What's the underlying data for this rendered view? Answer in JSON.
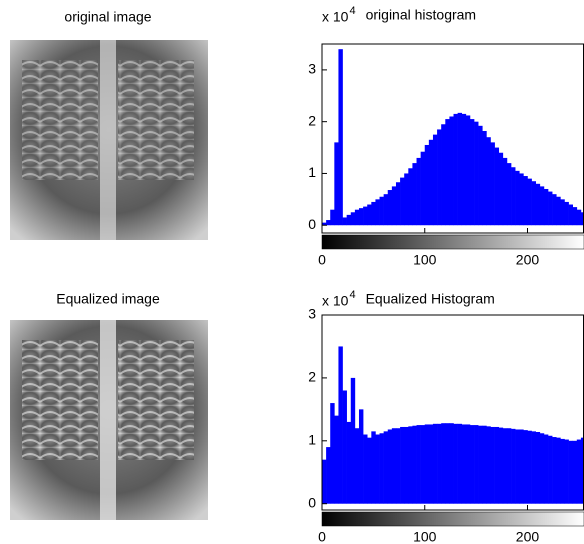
{
  "images": [
    {
      "title": "original image"
    },
    {
      "title": "Equalized image"
    }
  ],
  "chart_data": [
    {
      "type": "histogram",
      "title": "original histogram",
      "scale_base": "x 10",
      "scale_exponent": "4",
      "color": "#0000ff",
      "bins": [
        0,
        4,
        8,
        12,
        16,
        20,
        24,
        28,
        32,
        36,
        40,
        44,
        48,
        52,
        56,
        60,
        64,
        68,
        72,
        76,
        80,
        84,
        88,
        92,
        96,
        100,
        104,
        108,
        112,
        116,
        120,
        124,
        128,
        132,
        136,
        140,
        144,
        148,
        152,
        156,
        160,
        164,
        168,
        172,
        176,
        180,
        184,
        188,
        192,
        196,
        200,
        204,
        208,
        212,
        216,
        220,
        224,
        228,
        232,
        236,
        240,
        244,
        248,
        252,
        256
      ],
      "values": [
        0.05,
        0.1,
        0.3,
        1.6,
        3.4,
        0.15,
        0.2,
        0.25,
        0.3,
        0.33,
        0.36,
        0.4,
        0.45,
        0.5,
        0.55,
        0.6,
        0.68,
        0.75,
        0.83,
        0.92,
        1.0,
        1.1,
        1.2,
        1.3,
        1.42,
        1.55,
        1.65,
        1.75,
        1.85,
        1.95,
        2.05,
        2.1,
        2.15,
        2.17,
        2.15,
        2.12,
        2.05,
        2.0,
        1.92,
        1.82,
        1.7,
        1.6,
        1.5,
        1.4,
        1.3,
        1.2,
        1.12,
        1.05,
        1.0,
        0.95,
        0.9,
        0.85,
        0.8,
        0.75,
        0.7,
        0.65,
        0.6,
        0.55,
        0.5,
        0.45,
        0.4,
        0.35,
        0.3,
        0.25
      ],
      "xlim": [
        0,
        255
      ],
      "xticks": [
        0,
        100,
        200
      ],
      "ylim": [
        -0.15,
        3.5
      ],
      "yticks": [
        0,
        1,
        2,
        3
      ]
    },
    {
      "type": "histogram",
      "title": "Equalized Histogram",
      "scale_base": "x 10",
      "scale_exponent": "4",
      "color": "#0000ff",
      "bins": [
        0,
        4,
        8,
        12,
        16,
        20,
        24,
        28,
        32,
        36,
        40,
        44,
        48,
        52,
        56,
        60,
        64,
        68,
        72,
        76,
        80,
        84,
        88,
        92,
        96,
        100,
        104,
        108,
        112,
        116,
        120,
        124,
        128,
        132,
        136,
        140,
        144,
        148,
        152,
        156,
        160,
        164,
        168,
        172,
        176,
        180,
        184,
        188,
        192,
        196,
        200,
        204,
        208,
        212,
        216,
        220,
        224,
        228,
        232,
        236,
        240,
        244,
        248,
        252,
        256
      ],
      "values": [
        0.7,
        0.9,
        1.6,
        1.4,
        2.5,
        1.8,
        1.3,
        2.0,
        1.2,
        1.5,
        1.1,
        1.05,
        1.15,
        1.1,
        1.12,
        1.15,
        1.18,
        1.2,
        1.2,
        1.22,
        1.22,
        1.23,
        1.24,
        1.25,
        1.25,
        1.26,
        1.26,
        1.27,
        1.27,
        1.28,
        1.28,
        1.28,
        1.27,
        1.27,
        1.26,
        1.26,
        1.25,
        1.25,
        1.24,
        1.24,
        1.23,
        1.22,
        1.22,
        1.21,
        1.2,
        1.2,
        1.19,
        1.18,
        1.18,
        1.17,
        1.16,
        1.15,
        1.14,
        1.12,
        1.1,
        1.08,
        1.06,
        1.05,
        1.03,
        1.02,
        1.0,
        1.0,
        1.02,
        1.05
      ],
      "xlim": [
        0,
        255
      ],
      "xticks": [
        0,
        100,
        200
      ],
      "ylim": [
        -0.1,
        3
      ],
      "yticks": [
        0,
        1,
        2,
        3
      ]
    }
  ]
}
